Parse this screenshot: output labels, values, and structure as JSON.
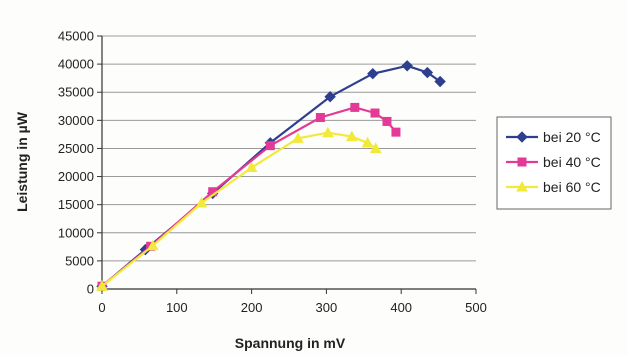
{
  "chart_data": {
    "type": "line",
    "title": "",
    "xlabel": "Spannung in mV",
    "ylabel": "Leistung in µW",
    "xlim": [
      0,
      500
    ],
    "ylim": [
      0,
      45000
    ],
    "x_ticks": [
      0,
      100,
      200,
      300,
      400,
      500
    ],
    "y_ticks": [
      0,
      5000,
      10000,
      15000,
      20000,
      25000,
      30000,
      35000,
      40000,
      45000
    ],
    "x_tick_labels": [
      "0",
      "100",
      "200",
      "300",
      "400",
      "500"
    ],
    "y_tick_labels": [
      "0",
      "5000",
      "10000",
      "15000",
      "20000",
      "25000",
      "30000",
      "35000",
      "40000",
      "45000"
    ],
    "grid": "horizontal",
    "legend_position": "right",
    "series": [
      {
        "name": "bei 20 °C",
        "color": "#2e3f8f",
        "marker": "diamond",
        "points": [
          [
            0,
            500
          ],
          [
            58,
            7000
          ],
          [
            148,
            17000
          ],
          [
            225,
            26000
          ],
          [
            305,
            34200
          ],
          [
            362,
            38300
          ],
          [
            408,
            39700
          ],
          [
            435,
            38500
          ],
          [
            452,
            36900
          ]
        ]
      },
      {
        "name": "bei 40 °C",
        "color": "#e23a96",
        "marker": "square",
        "points": [
          [
            0,
            500
          ],
          [
            65,
            7600
          ],
          [
            148,
            17300
          ],
          [
            225,
            25500
          ],
          [
            292,
            30500
          ],
          [
            338,
            32300
          ],
          [
            365,
            31300
          ],
          [
            381,
            29800
          ],
          [
            393,
            27900
          ]
        ]
      },
      {
        "name": "bei 60 °C",
        "color": "#f2ea3a",
        "marker": "triangle",
        "points": [
          [
            0,
            500
          ],
          [
            68,
            7700
          ],
          [
            133,
            15300
          ],
          [
            200,
            21600
          ],
          [
            262,
            26800
          ],
          [
            302,
            27800
          ],
          [
            334,
            27100
          ],
          [
            355,
            26000
          ],
          [
            366,
            25000
          ]
        ]
      }
    ]
  }
}
